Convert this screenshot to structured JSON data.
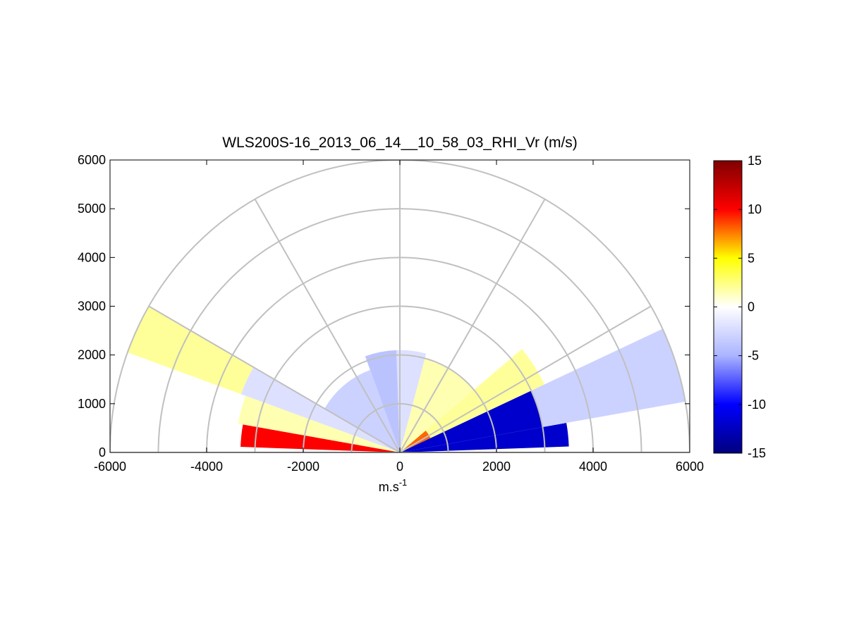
{
  "chart_data": {
    "type": "heatmap",
    "subtype": "polar RHI sector (range-height indicator)",
    "title": "WLS200S-16_2013_06_14__10_58_03_RHI_Vr (m/s)",
    "xlabel_base": "m.s",
    "xlabel_sup": "-1",
    "ylabel": "",
    "xlim": [
      -6000,
      6000
    ],
    "ylim": [
      0,
      6000
    ],
    "x_ticks": [
      -6000,
      -4000,
      -2000,
      0,
      2000,
      4000,
      6000
    ],
    "y_ticks": [
      0,
      1000,
      2000,
      3000,
      4000,
      5000,
      6000
    ],
    "polar_grid": {
      "range_rings": [
        1000,
        2000,
        3000,
        4000,
        5000,
        6000
      ],
      "spokes_deg": [
        0,
        30,
        60,
        90,
        120,
        150,
        180
      ]
    },
    "colorbar": {
      "range": [
        -15,
        15
      ],
      "ticks": [
        15,
        10,
        5,
        0,
        -5,
        -10,
        -15
      ],
      "colormap": "blue-white-yellow-red",
      "stops": [
        "#00007f",
        "#0000ff",
        "#aab4ff",
        "#ffffff",
        "#ffff00",
        "#ff0000",
        "#7f0000"
      ]
    },
    "sectors": [
      {
        "az_start": 2,
        "az_end": 10,
        "r_start": 0,
        "r_end": 3500,
        "value": -12
      },
      {
        "az_start": 10,
        "az_end": 25,
        "r_start": 0,
        "r_end": 3000,
        "value": -12
      },
      {
        "az_start": 10,
        "az_end": 25,
        "r_start": 3000,
        "r_end": 6000,
        "value": -3
      },
      {
        "az_start": 25,
        "az_end": 40,
        "r_start": 0,
        "r_end": 700,
        "value": 8
      },
      {
        "az_start": 25,
        "az_end": 40,
        "r_start": 700,
        "r_end": 3300,
        "value": 2
      },
      {
        "az_start": 40,
        "az_end": 75,
        "r_start": 0,
        "r_end": 2000,
        "value": 1.5
      },
      {
        "az_start": 75,
        "az_end": 92,
        "r_start": 0,
        "r_end": 2100,
        "value": -2
      },
      {
        "az_start": 92,
        "az_end": 110,
        "r_start": 0,
        "r_end": 2100,
        "value": -4
      },
      {
        "az_start": 110,
        "az_end": 150,
        "r_start": 0,
        "r_end": 1800,
        "value": -3
      },
      {
        "az_start": 150,
        "az_end": 160,
        "r_start": 0,
        "r_end": 3500,
        "value": -2
      },
      {
        "az_start": 150,
        "az_end": 160,
        "r_start": 3500,
        "r_end": 6000,
        "value": 2
      },
      {
        "az_start": 160,
        "az_end": 170,
        "r_start": 0,
        "r_end": 3400,
        "value": 1.5
      },
      {
        "az_start": 170,
        "az_end": 178,
        "r_start": 0,
        "r_end": 3300,
        "value": 10
      }
    ]
  }
}
